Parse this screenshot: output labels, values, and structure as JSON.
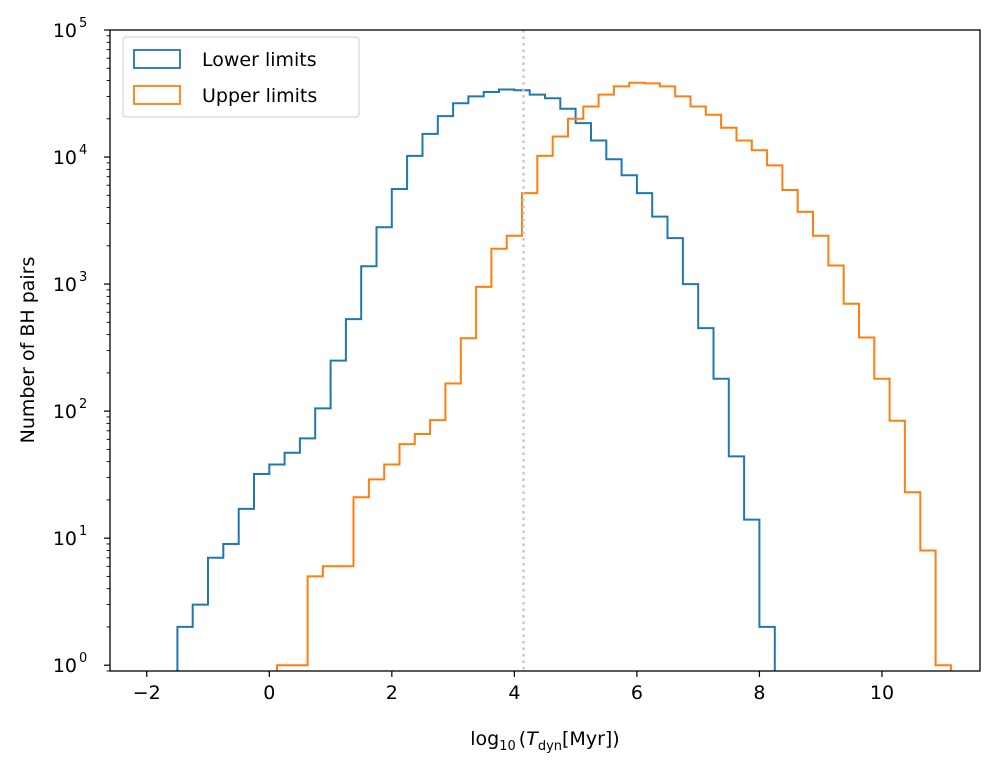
{
  "chart_data": {
    "type": "histogram",
    "yscale": "log",
    "xlim": [
      -2.6,
      11.6
    ],
    "ylim": [
      0.9,
      100000
    ],
    "xticks": [
      -2,
      0,
      2,
      4,
      6,
      8,
      10
    ],
    "xtick_labels": [
      "−2",
      "0",
      "2",
      "4",
      "6",
      "8",
      "10"
    ],
    "yticks": [
      1,
      10,
      100,
      1000,
      10000,
      100000
    ],
    "ytick_labels": [
      "10",
      "10",
      "10",
      "10",
      "10",
      "10"
    ],
    "ytick_exponents": [
      "0",
      "1",
      "2",
      "3",
      "4",
      "5"
    ],
    "xlabel": {
      "prefix": "log",
      "sub": "10",
      "open": "(",
      "var": "T",
      "var_sub": "dyn",
      "unit": "[Myr])"
    },
    "ylabel": "Number of BH pairs",
    "vline": {
      "x": 4.15,
      "color": "#c8c8c8",
      "style": "dotted"
    },
    "legend": {
      "location": "top-left"
    },
    "series": [
      {
        "name": "Lower limits",
        "color": "#1f77b4",
        "bin_start": -1.5,
        "bin_width": 0.25,
        "values": [
          2,
          3,
          7,
          9,
          17,
          32,
          38,
          47,
          61,
          105,
          250,
          530,
          1380,
          2800,
          5600,
          10200,
          15200,
          21000,
          26500,
          30000,
          32500,
          34000,
          33500,
          31000,
          29000,
          24000,
          18500,
          13500,
          9600,
          7200,
          5200,
          3400,
          2300,
          1000,
          450,
          180,
          44,
          14,
          2
        ]
      },
      {
        "name": "Upper limits",
        "color": "#ff7f0e",
        "bin_start": 0.125,
        "bin_width": 0.25,
        "values": [
          1,
          1,
          5,
          6,
          6,
          21,
          29,
          38,
          55,
          66,
          85,
          165,
          375,
          950,
          1900,
          2400,
          5200,
          10200,
          14500,
          20000,
          25000,
          31000,
          36000,
          38500,
          38000,
          36000,
          30000,
          25000,
          21500,
          17000,
          13500,
          11300,
          8600,
          5500,
          3700,
          2400,
          1400,
          700,
          380,
          180,
          84,
          23,
          8,
          1
        ]
      }
    ]
  }
}
